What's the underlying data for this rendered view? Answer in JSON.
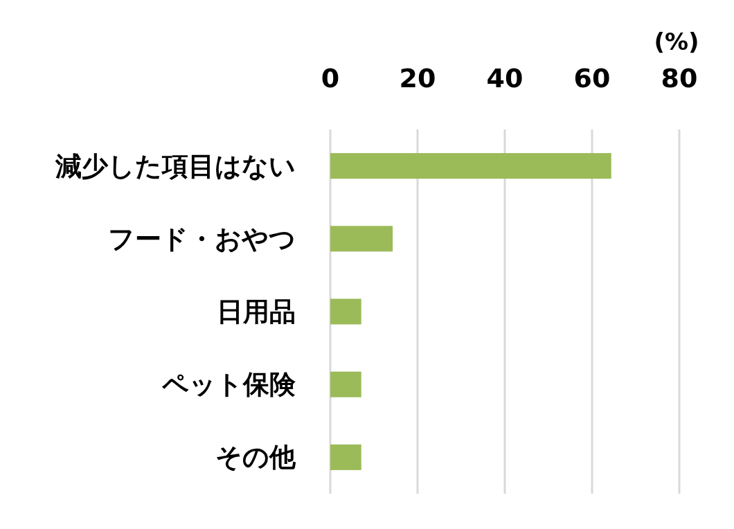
{
  "chart_data": {
    "type": "bar",
    "orientation": "horizontal",
    "xlabel": "(%)",
    "categories": [
      "減少した項目はない",
      "フード・おやつ",
      "日用品",
      "ペット保険",
      "その他"
    ],
    "values": [
      64.4,
      14.3,
      7.1,
      7.1,
      7.1
    ],
    "color": "#9bbb59",
    "xlim": [
      0,
      80
    ],
    "xticks": [
      0,
      20,
      40,
      60,
      80
    ],
    "grid": "x"
  }
}
